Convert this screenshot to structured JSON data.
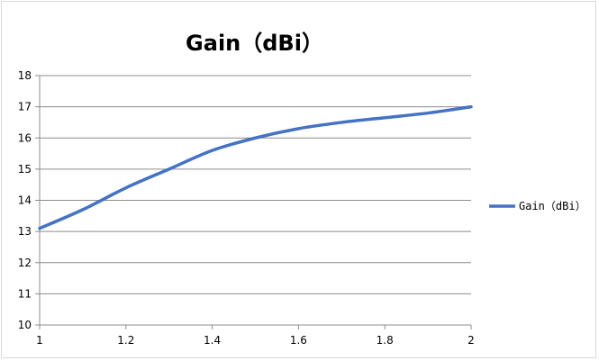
{
  "chart_data": {
    "type": "line",
    "title": "Gain（dBi）",
    "xlabel": "",
    "ylabel": "",
    "xlim": [
      1,
      2
    ],
    "ylim": [
      10,
      18
    ],
    "xticks": [
      "1",
      "1.2",
      "1.4",
      "1.6",
      "1.8",
      "2"
    ],
    "yticks": [
      "10",
      "11",
      "12",
      "13",
      "14",
      "15",
      "16",
      "17",
      "18"
    ],
    "grid": "horizontal",
    "legend_position": "right",
    "series": [
      {
        "name": "Gain（dBi）",
        "color": "#4472c4",
        "x": [
          1,
          1.1,
          1.2,
          1.3,
          1.4,
          1.5,
          1.6,
          1.7,
          1.8,
          1.9,
          2
        ],
        "y": [
          13.1,
          13.7,
          14.4,
          15.0,
          15.6,
          16.0,
          16.3,
          16.5,
          16.65,
          16.8,
          17.0
        ]
      }
    ]
  }
}
